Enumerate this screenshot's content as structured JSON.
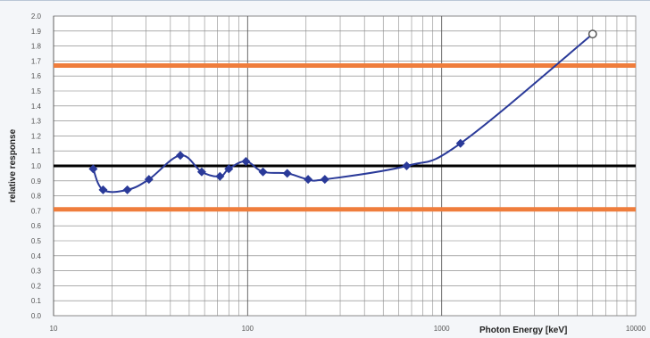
{
  "chart_data": {
    "type": "line",
    "xlabel": "Photon Energy [keV]",
    "ylabel": "relative response",
    "xscale": "log",
    "xlim": [
      10,
      10000
    ],
    "ylim": [
      0.0,
      2.0
    ],
    "xticks": [
      10,
      100,
      1000,
      10000
    ],
    "xtick_labels": [
      "10",
      "100",
      "1000",
      "10000"
    ],
    "yticks": [
      0.0,
      0.1,
      0.2,
      0.3,
      0.4,
      0.5,
      0.6,
      0.7,
      0.8,
      0.9,
      1.0,
      1.1,
      1.2,
      1.3,
      1.4,
      1.5,
      1.6,
      1.7,
      1.8,
      1.9,
      2.0
    ],
    "ytick_labels": [
      "0.0",
      "0.1",
      "0.2",
      "0.3",
      "0.4",
      "0.5",
      "0.6",
      "0.7",
      "0.8",
      "0.9",
      "1.0",
      "1.1",
      "1.2",
      "1.3",
      "1.4",
      "1.5",
      "1.6",
      "1.7",
      "1.8",
      "1.9",
      "2.0"
    ],
    "grid": true,
    "series": [
      {
        "color": "#2a3a99",
        "x": [
          16,
          18,
          24,
          31,
          45,
          58,
          72,
          80,
          98,
          120,
          160,
          205,
          250,
          660,
          1250,
          6000
        ],
        "y": [
          0.98,
          0.84,
          0.84,
          0.91,
          1.07,
          0.96,
          0.93,
          0.98,
          1.03,
          0.96,
          0.95,
          0.91,
          0.91,
          1.0,
          1.15,
          1.88
        ],
        "open_marker_last": true
      }
    ],
    "reference_lines": [
      {
        "y": 1.0,
        "color": "#000000"
      },
      {
        "y": 1.67,
        "color": "#ef7d3c"
      },
      {
        "y": 0.71,
        "color": "#ef7d3c"
      }
    ]
  }
}
